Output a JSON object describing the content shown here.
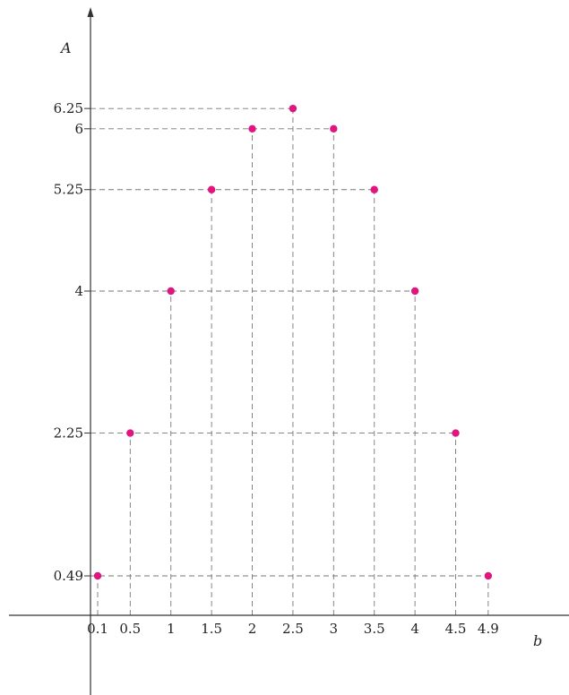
{
  "chart_data": {
    "type": "scatter",
    "xlabel": "b",
    "ylabel": "A",
    "x_ticks": [
      "0.1",
      "0.5",
      "1",
      "1.5",
      "2",
      "2.5",
      "3",
      "3.5",
      "4",
      "4.5",
      "4.9"
    ],
    "y_ticks": [
      "0.49",
      "2.25",
      "4",
      "5.25",
      "6",
      "6.25"
    ],
    "points": [
      {
        "x": 0.1,
        "y": 0.49
      },
      {
        "x": 0.5,
        "y": 2.25
      },
      {
        "x": 1,
        "y": 4
      },
      {
        "x": 1.5,
        "y": 5.25
      },
      {
        "x": 2,
        "y": 6
      },
      {
        "x": 2.5,
        "y": 6.25
      },
      {
        "x": 3,
        "y": 6
      },
      {
        "x": 3.5,
        "y": 5.25
      },
      {
        "x": 4,
        "y": 4
      },
      {
        "x": 4.5,
        "y": 2.25
      },
      {
        "x": 4.9,
        "y": 0.49
      }
    ],
    "grid": false,
    "guides": "dashed",
    "point_color": "#e0157f"
  }
}
